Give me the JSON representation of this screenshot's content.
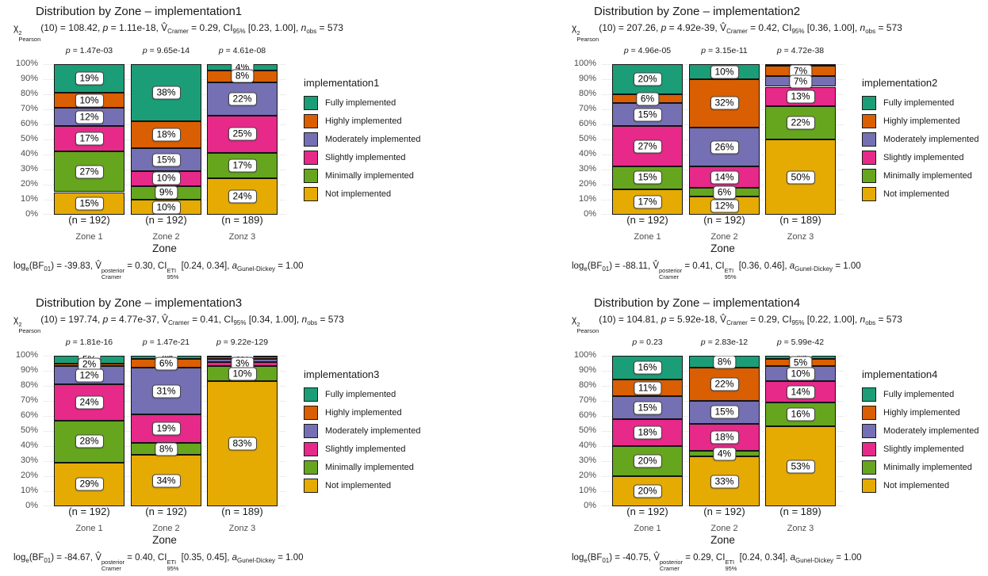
{
  "symbols": {
    "chi": "χ",
    "chi_sup": "2",
    "chi_sub": "Pearson",
    "p": "p",
    "v_hat": "V̂",
    "cramer": "Cramer",
    "ci": "CI",
    "ci95": "95%",
    "n": "n",
    "obs": "obs",
    "log": "log",
    "log_e": "e",
    "bf": "BF",
    "bf01": "01",
    "posterior": "posterior",
    "eti": "ETI",
    "a": "a",
    "gunel": "Gunel-Dickey"
  },
  "legend_items": [
    {
      "label": "Fully implemented",
      "color": "#1B9E77"
    },
    {
      "label": "Highly implemented",
      "color": "#D95F02"
    },
    {
      "label": "Moderately implemented",
      "color": "#7570B3"
    },
    {
      "label": "Slightly implemented",
      "color": "#E7298A"
    },
    {
      "label": "Minimally implemented",
      "color": "#66A61E"
    },
    {
      "label": "Not implemented",
      "color": "#E6AB02"
    }
  ],
  "axis": {
    "x_title": "Zone",
    "y_ticks": [
      "0%",
      "10%",
      "20%",
      "30%",
      "40%",
      "50%",
      "60%",
      "70%",
      "80%",
      "90%",
      "100%"
    ]
  },
  "chart_data": [
    {
      "type": "bar",
      "subtype": "stacked-percent",
      "title": "Distribution by Zone – implementation1",
      "legend_title": "implementation1",
      "subtitle": {
        "df": "10",
        "chi2": "108.42",
        "p": "1.11e-18",
        "v": "0.29",
        "ci": "[0.23, 1.00]",
        "n_obs": "573"
      },
      "caption": {
        "log_bf": "-39.83",
        "v": "0.30",
        "ci": "[0.24, 0.34]",
        "a": "1.00"
      },
      "zones": [
        {
          "zone": "Zone 1",
          "n": "(n = 192)",
          "p": "1.47e-03",
          "segments": [
            {
              "pct": 19,
              "label": "19%"
            },
            {
              "pct": 10,
              "label": "10%"
            },
            {
              "pct": 12,
              "label": "12%"
            },
            {
              "pct": 17,
              "label": "17%"
            },
            {
              "pct": 27,
              "label": "27%"
            },
            {
              "pct": 15,
              "label": "15%"
            }
          ]
        },
        {
          "zone": "Zone 2",
          "n": "(n = 192)",
          "p": "9.65e-14",
          "segments": [
            {
              "pct": 38,
              "label": "38%"
            },
            {
              "pct": 18,
              "label": "18%"
            },
            {
              "pct": 15,
              "label": "15%"
            },
            {
              "pct": 10,
              "label": "10%"
            },
            {
              "pct": 9,
              "label": "9%"
            },
            {
              "pct": 10,
              "label": "10%"
            }
          ]
        },
        {
          "zone": "Zonz 3",
          "n": "(n = 189)",
          "p": "4.61e-08",
          "segments": [
            {
              "pct": 4,
              "label": "4%"
            },
            {
              "pct": 8,
              "label": "8%"
            },
            {
              "pct": 22,
              "label": "22%"
            },
            {
              "pct": 25,
              "label": "25%"
            },
            {
              "pct": 17,
              "label": "17%"
            },
            {
              "pct": 24,
              "label": "24%"
            }
          ]
        }
      ]
    },
    {
      "type": "bar",
      "subtype": "stacked-percent",
      "title": "Distribution by Zone – implementation2",
      "legend_title": "implementation2",
      "subtitle": {
        "df": "10",
        "chi2": "207.26",
        "p": "4.92e-39",
        "v": "0.42",
        "ci": "[0.36, 1.00]",
        "n_obs": "573"
      },
      "caption": {
        "log_bf": "-88.11",
        "v": "0.41",
        "ci": "[0.36, 0.46]",
        "a": "1.00"
      },
      "zones": [
        {
          "zone": "Zone 1",
          "n": "(n = 192)",
          "p": "4.96e-05",
          "segments": [
            {
              "pct": 20,
              "label": "20%"
            },
            {
              "pct": 6,
              "label": "6%"
            },
            {
              "pct": 15,
              "label": "15%"
            },
            {
              "pct": 27,
              "label": "27%"
            },
            {
              "pct": 15,
              "label": "15%"
            },
            {
              "pct": 17,
              "label": "17%"
            }
          ]
        },
        {
          "zone": "Zone 2",
          "n": "(n = 192)",
          "p": "3.15e-11",
          "segments": [
            {
              "pct": 10,
              "label": "10%"
            },
            {
              "pct": 32,
              "label": "32%"
            },
            {
              "pct": 26,
              "label": "26%"
            },
            {
              "pct": 14,
              "label": "14%"
            },
            {
              "pct": 6,
              "label": "6%"
            },
            {
              "pct": 12,
              "label": "12%"
            }
          ]
        },
        {
          "zone": "Zonz 3",
          "n": "(n = 189)",
          "p": "4.72e-38",
          "segments": [
            {
              "pct": 1,
              "label": null
            },
            {
              "pct": 7,
              "label": "7%"
            },
            {
              "pct": 7,
              "label": "7%"
            },
            {
              "pct": 13,
              "label": "13%"
            },
            {
              "pct": 22,
              "label": "22%"
            },
            {
              "pct": 50,
              "label": "50%"
            }
          ]
        }
      ]
    },
    {
      "type": "bar",
      "subtype": "stacked-percent",
      "title": "Distribution by Zone – implementation3",
      "legend_title": "implementation3",
      "subtitle": {
        "df": "10",
        "chi2": "197.74",
        "p": "4.77e-37",
        "v": "0.41",
        "ci": "[0.34, 1.00]",
        "n_obs": "573"
      },
      "caption": {
        "log_bf": "-84.67",
        "v": "0.40",
        "ci": "[0.35, 0.45]",
        "a": "1.00"
      },
      "zones": [
        {
          "zone": "Zone 1",
          "n": "(n = 192)",
          "p": "1.81e-16",
          "segments": [
            {
              "pct": 5,
              "label": "5%"
            },
            {
              "pct": 2,
              "label": "2%"
            },
            {
              "pct": 12,
              "label": "12%"
            },
            {
              "pct": 24,
              "label": "24%"
            },
            {
              "pct": 28,
              "label": "28%"
            },
            {
              "pct": 29,
              "label": "29%"
            }
          ]
        },
        {
          "zone": "Zone 2",
          "n": "(n = 192)",
          "p": "1.47e-21",
          "segments": [
            {
              "pct": 2,
              "label": "2%"
            },
            {
              "pct": 6,
              "label": "6%"
            },
            {
              "pct": 31,
              "label": "31%"
            },
            {
              "pct": 19,
              "label": "19%"
            },
            {
              "pct": 8,
              "label": "8%"
            },
            {
              "pct": 34,
              "label": "34%"
            }
          ]
        },
        {
          "zone": "Zonz 3",
          "n": "(n = 189)",
          "p": "9.22e-129",
          "segments": [
            {
              "pct": 0.5,
              "label": null
            },
            {
              "pct": 1.5,
              "label": null
            },
            {
              "pct": 2,
              "label": "2%"
            },
            {
              "pct": 3,
              "label": "3%"
            },
            {
              "pct": 10,
              "label": "10%"
            },
            {
              "pct": 83,
              "label": "83%"
            }
          ]
        }
      ]
    },
    {
      "type": "bar",
      "subtype": "stacked-percent",
      "title": "Distribution by Zone – implementation4",
      "legend_title": "implementation4",
      "subtitle": {
        "df": "10",
        "chi2": "104.81",
        "p": "5.92e-18",
        "v": "0.29",
        "ci": "[0.22, 1.00]",
        "n_obs": "573"
      },
      "caption": {
        "log_bf": "-40.75",
        "v": "0.29",
        "ci": "[0.24, 0.34]",
        "a": "1.00"
      },
      "zones": [
        {
          "zone": "Zone 1",
          "n": "(n = 192)",
          "p": "0.23",
          "segments": [
            {
              "pct": 16,
              "label": "16%"
            },
            {
              "pct": 11,
              "label": "11%"
            },
            {
              "pct": 15,
              "label": "15%"
            },
            {
              "pct": 18,
              "label": "18%"
            },
            {
              "pct": 20,
              "label": "20%"
            },
            {
              "pct": 20,
              "label": "20%"
            }
          ]
        },
        {
          "zone": "Zone 2",
          "n": "(n = 192)",
          "p": "2.83e-12",
          "segments": [
            {
              "pct": 8,
              "label": "8%"
            },
            {
              "pct": 22,
              "label": "22%"
            },
            {
              "pct": 15,
              "label": "15%"
            },
            {
              "pct": 18,
              "label": "18%"
            },
            {
              "pct": 4,
              "label": "4%"
            },
            {
              "pct": 33,
              "label": "33%"
            }
          ]
        },
        {
          "zone": "Zonz 3",
          "n": "(n = 189)",
          "p": "5.99e-42",
          "segments": [
            {
              "pct": 2,
              "label": "2%"
            },
            {
              "pct": 5,
              "label": "5%"
            },
            {
              "pct": 10,
              "label": "10%"
            },
            {
              "pct": 14,
              "label": "14%"
            },
            {
              "pct": 16,
              "label": "16%"
            },
            {
              "pct": 53,
              "label": "53%"
            }
          ]
        }
      ]
    }
  ]
}
